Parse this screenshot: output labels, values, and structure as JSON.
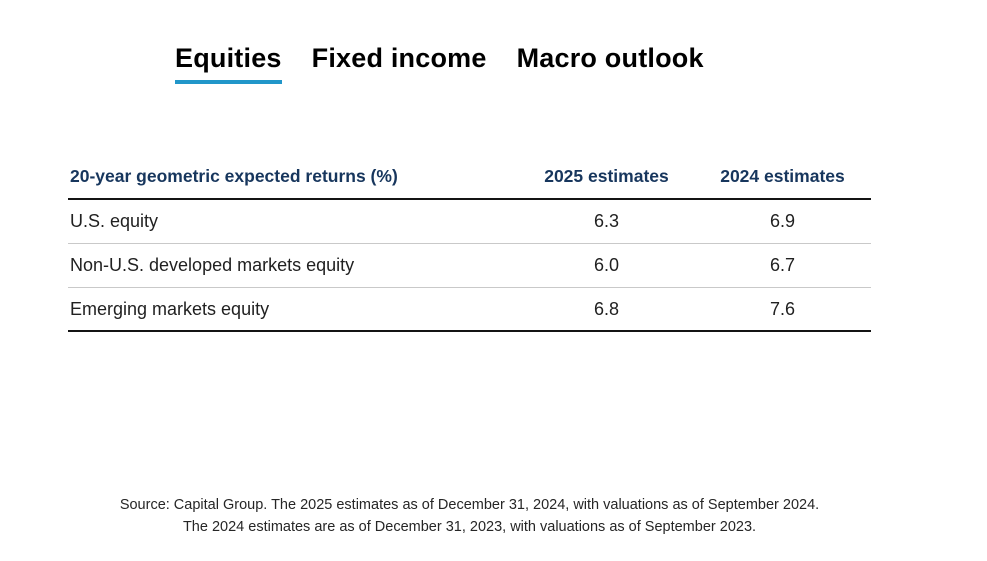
{
  "tabs": {
    "items": [
      {
        "label": "Equities",
        "active": true
      },
      {
        "label": "Fixed income",
        "active": false
      },
      {
        "label": "Macro outlook",
        "active": false
      }
    ]
  },
  "chart_data": {
    "type": "table",
    "title": "20-year geometric expected returns (%)",
    "columns": [
      "2025 estimates",
      "2024 estimates"
    ],
    "rows": [
      {
        "label": "U.S. equity",
        "values": [
          "6.3",
          "6.9"
        ]
      },
      {
        "label": "Non-U.S. developed markets equity",
        "values": [
          "6.0",
          "6.7"
        ]
      },
      {
        "label": "Emerging markets equity",
        "values": [
          "6.8",
          "7.6"
        ]
      }
    ]
  },
  "source": {
    "line1": "Source: Capital Group. The 2025 estimates as of December 31, 2024, with valuations as of September 2024.",
    "line2": "The 2024 estimates are as of December 31, 2023, with valuations as of September 2023."
  },
  "colors": {
    "accent_underline": "#2196c9",
    "header_navy": "#17365d",
    "body_text": "#212121",
    "divider_light": "#c9c9c9",
    "divider_dark": "#141414"
  }
}
